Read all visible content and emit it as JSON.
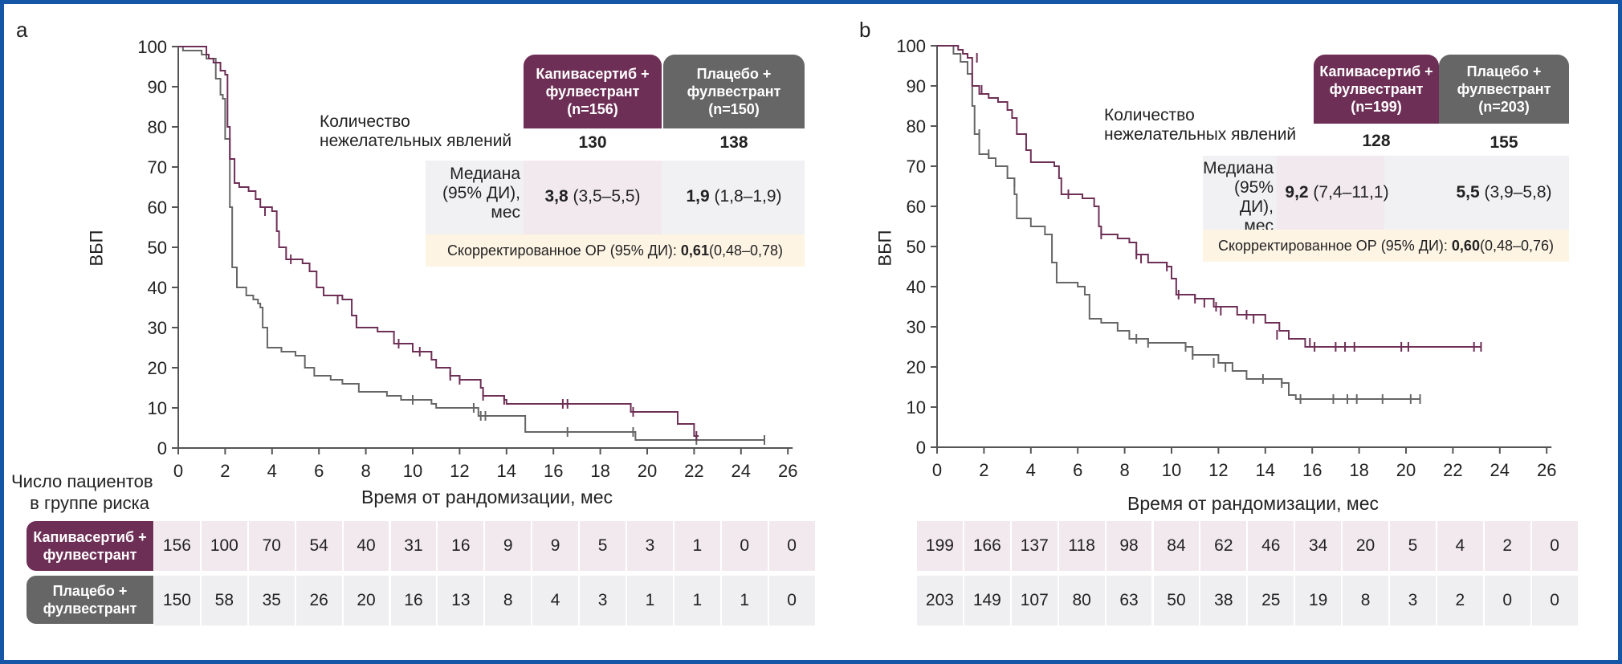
{
  "frame_color": "#1557a6",
  "colors": {
    "capivasertib": "#6e2f56",
    "placebo": "#666666",
    "capi_cell": "#f2e9ef",
    "plac_cell": "#efeef0",
    "hr_bg": "#fdf4e4"
  },
  "panels": [
    {
      "letter": "a",
      "ylabel": "ВБП",
      "xlabel": "Время от рандомизации, мес",
      "table": {
        "capi_header": [
          "Капивасертиб +",
          "фулвестрант",
          "(n=156)"
        ],
        "plac_header": [
          "Плацебо +",
          "фулвестрант",
          "(n=150)"
        ],
        "events_label": [
          "Количество",
          "нежелательных явлений"
        ],
        "events": {
          "capi": "130",
          "plac": "138"
        },
        "median_label": [
          "Медиана",
          "(95% ДИ),",
          "мес"
        ],
        "median": {
          "capi_bold": "3,8",
          "capi_ci": " (3,5–5,5)",
          "plac_bold": "1,9",
          "plac_ci": " (1,8–1,9)"
        },
        "hr_label": "Скорректированное ОР (95% ДИ): ",
        "hr_bold": "0,61",
        "hr_ci": " (0,48–0,78)"
      },
      "risk": {
        "capi_label": [
          "Капивасертиб +",
          "фулвестрант"
        ],
        "plac_label": [
          "Плацебо +",
          "фулвестрант"
        ],
        "capi": [
          "156",
          "100",
          "70",
          "54",
          "40",
          "31",
          "16",
          "9",
          "9",
          "5",
          "3",
          "1",
          "0",
          "0"
        ],
        "plac": [
          "150",
          "58",
          "35",
          "26",
          "20",
          "16",
          "13",
          "8",
          "4",
          "3",
          "1",
          "1",
          "1",
          "0"
        ]
      }
    },
    {
      "letter": "b",
      "ylabel": "ВБП",
      "xlabel": "Время от рандомизации, мес",
      "table": {
        "capi_header": [
          "Капивасертиб +",
          "фулвестрант",
          "(n=199)"
        ],
        "plac_header": [
          "Плацебо +",
          "фулвестрант",
          "(n=203)"
        ],
        "events_label": [
          "Количество",
          "нежелательных явлений"
        ],
        "events": {
          "capi": "128",
          "plac": "155"
        },
        "median_label": [
          "Медиана",
          "(95% ДИ),",
          "мес"
        ],
        "median": {
          "capi_bold": "9,2",
          "capi_ci": " (7,4–11,1)",
          "plac_bold": "5,5",
          "plac_ci": " (3,9–5,8)"
        },
        "hr_label": "Скорректированное ОР (95% ДИ): ",
        "hr_bold": "0,60",
        "hr_ci": " (0,48–0,76)"
      },
      "risk": {
        "capi_label": [
          "Капивасертиб +",
          "фулвестрант"
        ],
        "plac_label": [
          "Плацебо +",
          "фулвестрант"
        ],
        "capi": [
          "199",
          "166",
          "137",
          "118",
          "98",
          "84",
          "62",
          "46",
          "34",
          "20",
          "5",
          "4",
          "2",
          "0"
        ],
        "plac": [
          "203",
          "149",
          "107",
          "80",
          "63",
          "50",
          "38",
          "25",
          "19",
          "8",
          "3",
          "2",
          "0",
          "0"
        ]
      }
    }
  ],
  "risk_title": [
    "Число пациентов",
    "в группе риска"
  ],
  "chart_data": [
    {
      "type": "line",
      "title": "a",
      "xlabel": "Время от рандомизации, мес",
      "ylabel": "ВБП",
      "xlim": [
        0,
        26
      ],
      "ylim": [
        0,
        100
      ],
      "xticks": [
        0,
        2,
        4,
        6,
        8,
        10,
        12,
        14,
        16,
        18,
        20,
        22,
        24,
        26
      ],
      "yticks": [
        0,
        10,
        20,
        30,
        40,
        50,
        60,
        70,
        80,
        90,
        100
      ],
      "step": true,
      "series": [
        {
          "name": "Капивасертиб + фулвестрант",
          "color": "#6e2f56",
          "points": [
            [
              0,
              100
            ],
            [
              1.2,
              98
            ],
            [
              1.3,
              97
            ],
            [
              1.5,
              96
            ],
            [
              1.8,
              94
            ],
            [
              2.0,
              93
            ],
            [
              2.1,
              80
            ],
            [
              2.2,
              72
            ],
            [
              2.4,
              66
            ],
            [
              2.6,
              65
            ],
            [
              3.0,
              64
            ],
            [
              3.3,
              62
            ],
            [
              3.5,
              60
            ],
            [
              4.0,
              59
            ],
            [
              4.2,
              54
            ],
            [
              4.3,
              50
            ],
            [
              4.6,
              47
            ],
            [
              5.3,
              46
            ],
            [
              5.6,
              44
            ],
            [
              5.9,
              40
            ],
            [
              6.2,
              38
            ],
            [
              7.0,
              37
            ],
            [
              7.4,
              33
            ],
            [
              7.6,
              30
            ],
            [
              8.5,
              29
            ],
            [
              9.2,
              26
            ],
            [
              10.0,
              24
            ],
            [
              10.8,
              22
            ],
            [
              11.0,
              20
            ],
            [
              11.6,
              18
            ],
            [
              12.0,
              17
            ],
            [
              12.9,
              15
            ],
            [
              13.0,
              13
            ],
            [
              13.9,
              12
            ],
            [
              14.0,
              11
            ],
            [
              19.3,
              9
            ],
            [
              21.3,
              6
            ],
            [
              22.0,
              3
            ],
            [
              22.2,
              3
            ]
          ],
          "censors": [
            [
              3.7,
              59
            ],
            [
              4.8,
              47
            ],
            [
              6.8,
              37
            ],
            [
              7.6,
              32
            ],
            [
              9.4,
              26
            ],
            [
              10.3,
              24
            ],
            [
              11.6,
              18
            ],
            [
              12.0,
              17
            ],
            [
              13.0,
              13
            ],
            [
              13.9,
              12
            ],
            [
              16.4,
              11
            ],
            [
              16.6,
              11
            ],
            [
              19.4,
              9
            ],
            [
              22.1,
              3
            ]
          ]
        },
        {
          "name": "Плацебо + фулвестрант",
          "color": "#666666",
          "points": [
            [
              0,
              100
            ],
            [
              0.2,
              99
            ],
            [
              1.0,
              98
            ],
            [
              1.2,
              97
            ],
            [
              1.6,
              92
            ],
            [
              1.8,
              88
            ],
            [
              1.9,
              87
            ],
            [
              2.0,
              77
            ],
            [
              2.2,
              60
            ],
            [
              2.3,
              45
            ],
            [
              2.5,
              40
            ],
            [
              2.9,
              38
            ],
            [
              3.2,
              37
            ],
            [
              3.4,
              36
            ],
            [
              3.5,
              35
            ],
            [
              3.6,
              30
            ],
            [
              3.8,
              25
            ],
            [
              4.4,
              24
            ],
            [
              5.0,
              23
            ],
            [
              5.4,
              20
            ],
            [
              5.8,
              18
            ],
            [
              6.5,
              17
            ],
            [
              7.0,
              16
            ],
            [
              7.7,
              14
            ],
            [
              8.9,
              13
            ],
            [
              9.5,
              12
            ],
            [
              10.8,
              11
            ],
            [
              11.0,
              10
            ],
            [
              12.8,
              8
            ],
            [
              14.8,
              4
            ],
            [
              19.5,
              2
            ],
            [
              25.0,
              2
            ]
          ],
          "censors": [
            [
              10.0,
              12
            ],
            [
              12.6,
              10
            ],
            [
              12.9,
              8
            ],
            [
              13.1,
              8
            ],
            [
              16.6,
              4
            ],
            [
              19.4,
              4
            ],
            [
              22.1,
              2
            ],
            [
              25.0,
              2
            ]
          ]
        }
      ],
      "annotations": {
        "events": {
          "capi": 130,
          "plac": 138
        },
        "median_months": {
          "capi": "3,8 (3,5–5,5)",
          "plac": "1,9 (1,8–1,9)"
        },
        "hr": "0,61 (0,48–0,78)"
      }
    },
    {
      "type": "line",
      "title": "b",
      "xlabel": "Время от рандомизации, мес",
      "ylabel": "ВБП",
      "xlim": [
        0,
        26
      ],
      "ylim": [
        0,
        100
      ],
      "xticks": [
        0,
        2,
        4,
        6,
        8,
        10,
        12,
        14,
        16,
        18,
        20,
        22,
        24,
        26
      ],
      "yticks": [
        0,
        10,
        20,
        30,
        40,
        50,
        60,
        70,
        80,
        90,
        100
      ],
      "step": true,
      "series": [
        {
          "name": "Капивасертиб + фулвестрант",
          "color": "#6e2f56",
          "points": [
            [
              0,
              100
            ],
            [
              0.9,
              99
            ],
            [
              1.1,
              98
            ],
            [
              1.3,
              97
            ],
            [
              1.5,
              90
            ],
            [
              1.8,
              88
            ],
            [
              2.2,
              87
            ],
            [
              2.6,
              86
            ],
            [
              3.0,
              84
            ],
            [
              3.2,
              82
            ],
            [
              3.4,
              78
            ],
            [
              3.8,
              74
            ],
            [
              4.0,
              71
            ],
            [
              5.0,
              70
            ],
            [
              5.2,
              67
            ],
            [
              5.3,
              63
            ],
            [
              6.2,
              62
            ],
            [
              6.7,
              60
            ],
            [
              6.9,
              55
            ],
            [
              7.0,
              53
            ],
            [
              7.7,
              52
            ],
            [
              8.2,
              51
            ],
            [
              8.5,
              48
            ],
            [
              9.0,
              46
            ],
            [
              9.8,
              45
            ],
            [
              10.0,
              42
            ],
            [
              10.2,
              38
            ],
            [
              11.0,
              37
            ],
            [
              11.8,
              35
            ],
            [
              12.8,
              33
            ],
            [
              14.0,
              31
            ],
            [
              14.6,
              29
            ],
            [
              15.0,
              27
            ],
            [
              15.7,
              25
            ],
            [
              23.2,
              25
            ]
          ],
          "censors": [
            [
              1.7,
              97
            ],
            [
              1.9,
              89
            ],
            [
              5.6,
              63
            ],
            [
              7.0,
              53
            ],
            [
              8.5,
              48
            ],
            [
              8.7,
              47
            ],
            [
              9.8,
              45
            ],
            [
              10.0,
              44
            ],
            [
              10.3,
              38
            ],
            [
              11.0,
              37
            ],
            [
              11.4,
              36
            ],
            [
              11.9,
              35
            ],
            [
              12.1,
              34
            ],
            [
              13.2,
              33
            ],
            [
              13.5,
              32
            ],
            [
              14.5,
              28
            ],
            [
              15.9,
              26
            ],
            [
              16.1,
              25
            ],
            [
              17.0,
              25
            ],
            [
              17.4,
              25
            ],
            [
              17.8,
              25
            ],
            [
              19.8,
              25
            ],
            [
              20.1,
              25
            ],
            [
              22.9,
              25
            ],
            [
              23.2,
              25
            ]
          ]
        },
        {
          "name": "Плацебо + фулвестрант",
          "color": "#666666",
          "points": [
            [
              0,
              100
            ],
            [
              0.7,
              98
            ],
            [
              1.0,
              96
            ],
            [
              1.3,
              93
            ],
            [
              1.5,
              85
            ],
            [
              1.6,
              78
            ],
            [
              1.8,
              73
            ],
            [
              2.2,
              72
            ],
            [
              2.5,
              70
            ],
            [
              3.0,
              67
            ],
            [
              3.3,
              63
            ],
            [
              3.4,
              57
            ],
            [
              4.0,
              55
            ],
            [
              4.6,
              53
            ],
            [
              4.9,
              46
            ],
            [
              5.1,
              41
            ],
            [
              6.0,
              40
            ],
            [
              6.3,
              38
            ],
            [
              6.5,
              32
            ],
            [
              7.0,
              31
            ],
            [
              7.7,
              29
            ],
            [
              8.2,
              27
            ],
            [
              9.0,
              26
            ],
            [
              10.6,
              25
            ],
            [
              10.9,
              23
            ],
            [
              12.0,
              21
            ],
            [
              12.6,
              19
            ],
            [
              13.2,
              17
            ],
            [
              14.7,
              16
            ],
            [
              15.0,
              13
            ],
            [
              15.3,
              12
            ],
            [
              20.6,
              12
            ]
          ],
          "censors": [
            [
              1.8,
              78
            ],
            [
              2.2,
              73
            ],
            [
              3.3,
              66
            ],
            [
              8.5,
              27
            ],
            [
              9.0,
              26
            ],
            [
              10.6,
              25
            ],
            [
              10.9,
              23
            ],
            [
              11.8,
              21
            ],
            [
              12.3,
              20
            ],
            [
              13.9,
              17
            ],
            [
              14.7,
              16
            ],
            [
              15.5,
              12
            ],
            [
              16.9,
              12
            ],
            [
              17.5,
              12
            ],
            [
              17.9,
              12
            ],
            [
              19.0,
              12
            ],
            [
              20.2,
              12
            ],
            [
              20.6,
              12
            ]
          ]
        }
      ],
      "annotations": {
        "events": {
          "capi": 128,
          "plac": 155
        },
        "median_months": {
          "capi": "9,2 (7,4–11,1)",
          "plac": "5,5 (3,9–5,8)"
        },
        "hr": "0,60 (0,48–0,76)"
      }
    }
  ]
}
